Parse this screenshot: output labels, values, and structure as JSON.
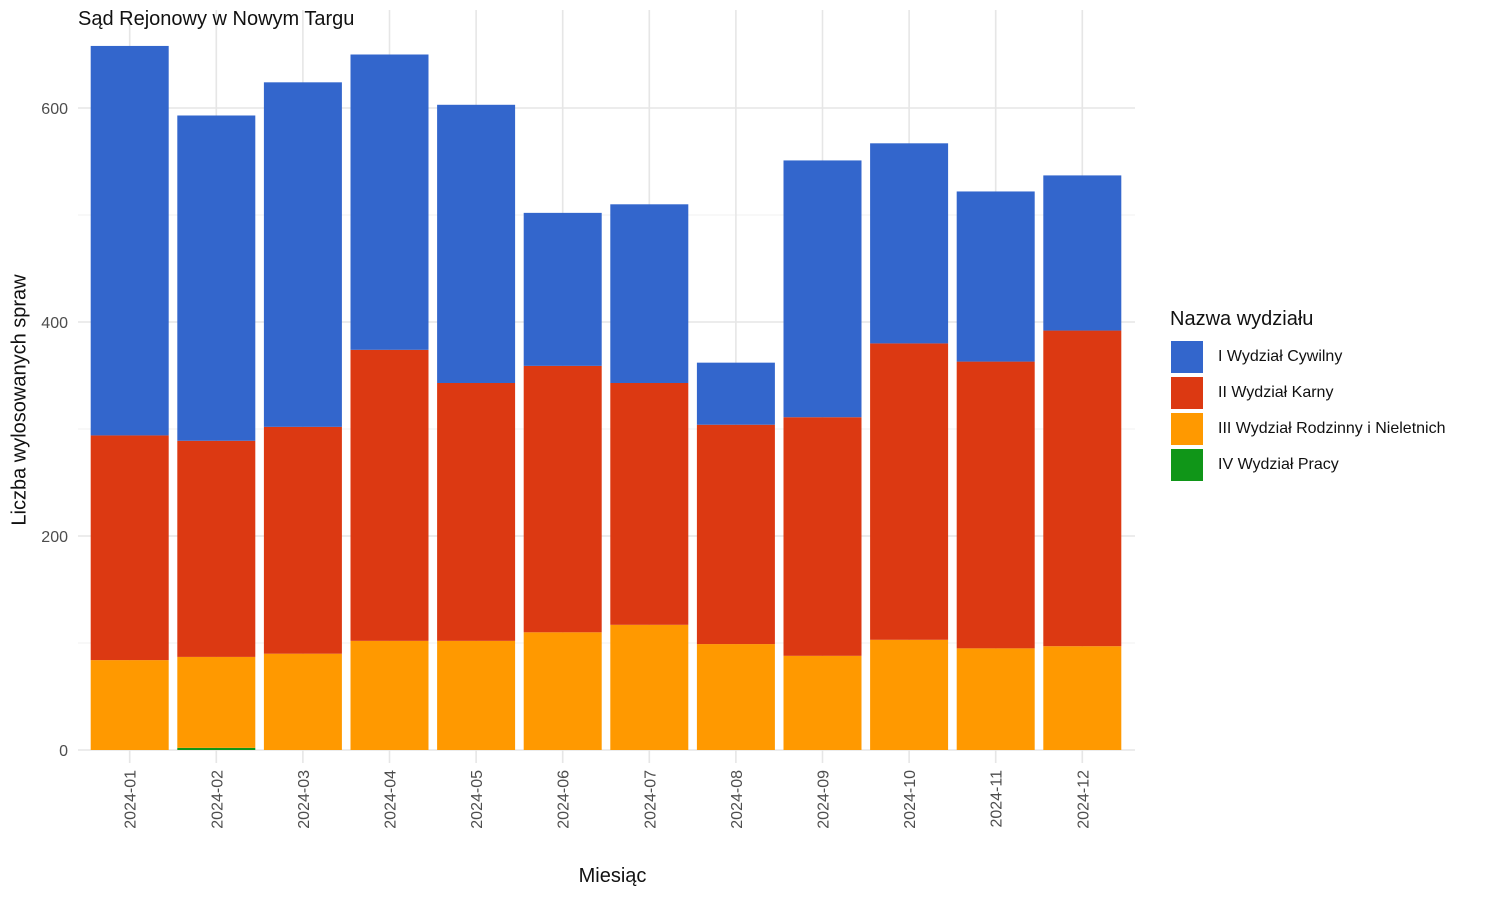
{
  "chart_data": {
    "type": "bar",
    "stacked": true,
    "title": "Sąd Rejonowy w Nowym Targu",
    "xlabel": "Miesiąc",
    "ylabel": "Liczba wylosowanych spraw",
    "ylim": [
      0,
      670
    ],
    "yticks": [
      0,
      200,
      400,
      600
    ],
    "grid": true,
    "legend_title": "Nazwa wydziału",
    "legend_position": "right",
    "categories": [
      "2024-01",
      "2024-02",
      "2024-03",
      "2024-04",
      "2024-05",
      "2024-06",
      "2024-07",
      "2024-08",
      "2024-09",
      "2024-10",
      "2024-11",
      "2024-12"
    ],
    "series": [
      {
        "name": "IV Wydział Pracy",
        "color": "#109618",
        "values": [
          0,
          2,
          0,
          0,
          0,
          0,
          0,
          0,
          0,
          0,
          0,
          0
        ]
      },
      {
        "name": "III Wydział Rodzinny i Nieletnich",
        "color": "#FF9900",
        "values": [
          84,
          85,
          90,
          102,
          102,
          110,
          117,
          99,
          88,
          103,
          95,
          97
        ]
      },
      {
        "name": "II Wydział Karny",
        "color": "#DC3912",
        "values": [
          210,
          202,
          212,
          272,
          241,
          249,
          226,
          205,
          223,
          277,
          268,
          295
        ]
      },
      {
        "name": "I Wydział Cywilny",
        "color": "#3366CC",
        "values": [
          364,
          304,
          322,
          276,
          260,
          143,
          167,
          58,
          240,
          187,
          159,
          145
        ]
      }
    ]
  }
}
